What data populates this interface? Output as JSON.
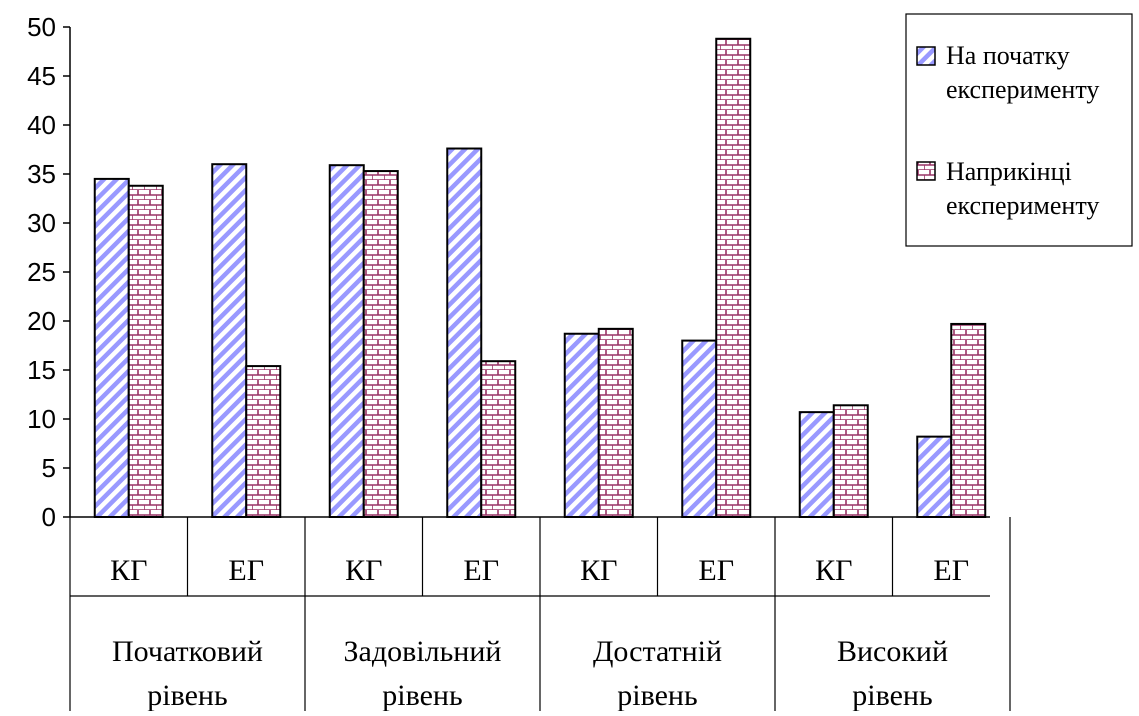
{
  "chart_data": {
    "type": "bar",
    "title": "",
    "xlabel": "",
    "ylabel": "",
    "ylim": [
      0,
      50
    ],
    "yticks": [
      0,
      5,
      10,
      15,
      20,
      25,
      30,
      35,
      40,
      45,
      50
    ],
    "grid": false,
    "legend_position": "top-right",
    "categories": [
      "КГ",
      "ЕГ",
      "КГ",
      "ЕГ",
      "КГ",
      "ЕГ",
      "КГ",
      "ЕГ"
    ],
    "groups": [
      {
        "label_lines": [
          "Початковий",
          "рівень"
        ]
      },
      {
        "label_lines": [
          "Задовільний",
          "рівень"
        ]
      },
      {
        "label_lines": [
          "Достатній",
          "рівень"
        ]
      },
      {
        "label_lines": [
          "Високий",
          "рівень"
        ]
      }
    ],
    "series": [
      {
        "name_lines": [
          "На початку",
          "експерименту"
        ],
        "color": "#9999ff",
        "pattern": "diagonal-stripes",
        "values": [
          34.5,
          36.0,
          35.9,
          37.6,
          18.7,
          18.0,
          10.7,
          8.2
        ]
      },
      {
        "name_lines": [
          "Наприкінці",
          "експерименту"
        ],
        "color": "#993366",
        "pattern": "brick",
        "values": [
          33.8,
          15.4,
          35.3,
          15.9,
          19.2,
          48.8,
          11.4,
          19.7
        ]
      }
    ]
  }
}
